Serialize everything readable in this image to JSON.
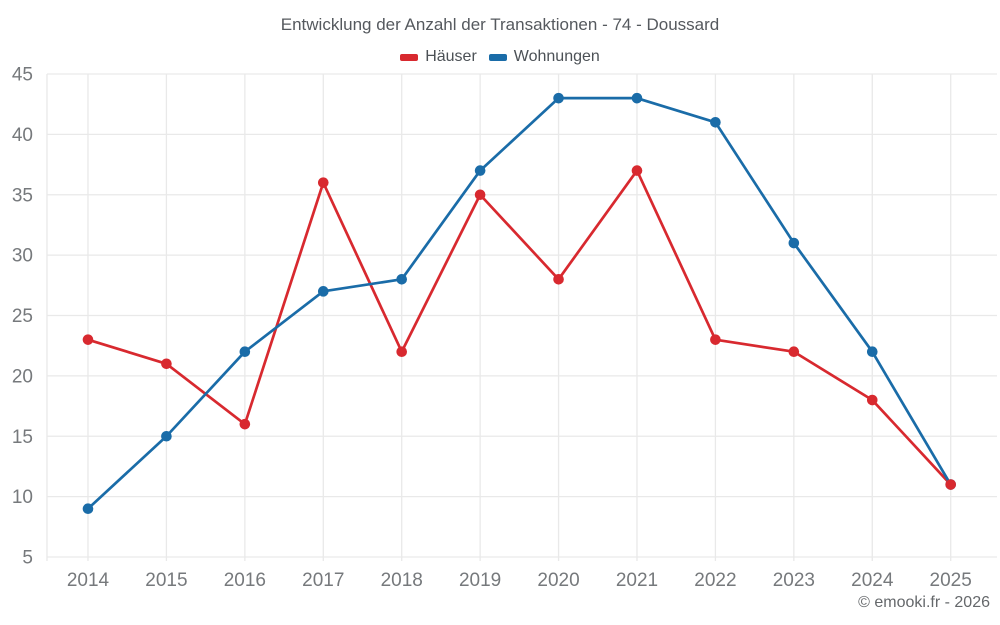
{
  "header": {
    "title": "Entwicklung der Anzahl der Transaktionen - 74 - Doussard"
  },
  "footer": {
    "credit": "© emooki.fr - 2026"
  },
  "chart_data": {
    "type": "line",
    "title": "Entwicklung der Anzahl der Transaktionen - 74 - Doussard",
    "categories": [
      "2014",
      "2015",
      "2016",
      "2017",
      "2018",
      "2019",
      "2020",
      "2021",
      "2022",
      "2023",
      "2024",
      "2025"
    ],
    "series": [
      {
        "name": "Häuser",
        "color": "#d8292f",
        "values": [
          23,
          21,
          16,
          36,
          22,
          35,
          28,
          37,
          23,
          22,
          18,
          11
        ]
      },
      {
        "name": "Wohnungen",
        "color": "#1a6ca8",
        "values": [
          9,
          15,
          22,
          27,
          28,
          37,
          43,
          43,
          41,
          31,
          22,
          11
        ]
      }
    ],
    "xlabel": "",
    "ylabel": "",
    "ylim": [
      5,
      45
    ],
    "yticks": [
      5,
      10,
      15,
      20,
      25,
      30,
      35,
      40,
      45
    ],
    "grid": true,
    "legend_position": "top",
    "marker": "circle",
    "colors": {
      "grid": "#e9e9e9",
      "tick_label": "#76797c",
      "title": "#55595e",
      "legend_label": "#4c5156",
      "footer": "#65686b",
      "background": "#ffffff"
    }
  }
}
